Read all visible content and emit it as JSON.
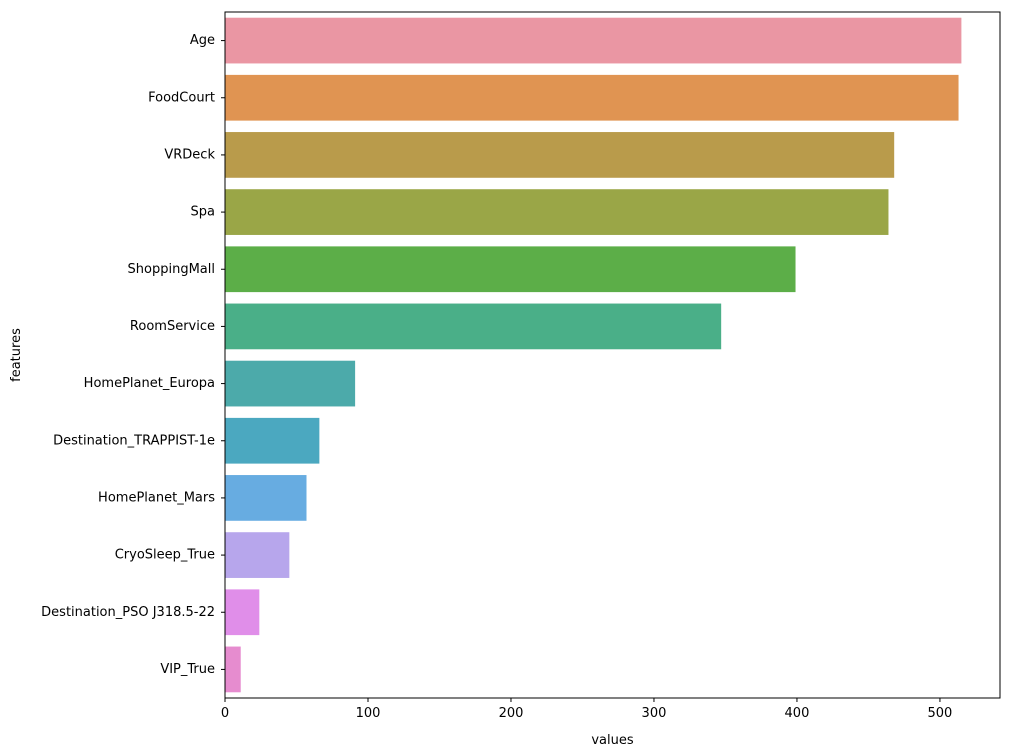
{
  "chart_data": {
    "type": "bar",
    "orientation": "horizontal",
    "title": "",
    "xlabel": "values",
    "ylabel": "features",
    "xlim": [
      0,
      542
    ],
    "x_ticks": [
      0,
      100,
      200,
      300,
      400,
      500
    ],
    "x_tick_labels": [
      "0",
      "100",
      "200",
      "300",
      "400",
      "500"
    ],
    "grid": false,
    "categories": [
      "Age",
      "FoodCourt",
      "VRDeck",
      "Spa",
      "ShoppingMall",
      "RoomService",
      "HomePlanet_Europa",
      "Destination_TRAPPIST-1e",
      "HomePlanet_Mars",
      "CryoSleep_True",
      "Destination_PSO J318.5-22",
      "VIP_True"
    ],
    "values": [
      515,
      513,
      468,
      464,
      399,
      347,
      91,
      66,
      57,
      45,
      24,
      11
    ],
    "colors": [
      "#ea96a3",
      "#e09452",
      "#b99b4b",
      "#9aa647",
      "#5cae48",
      "#4aaf88",
      "#4caaaa",
      "#4ba8c0",
      "#67ace1",
      "#b7a6ec",
      "#e08ee9",
      "#e68ccf"
    ]
  }
}
